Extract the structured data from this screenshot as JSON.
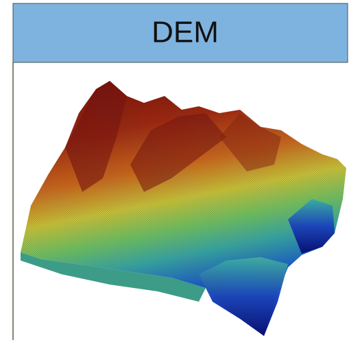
{
  "header": {
    "title": "DEM"
  }
}
